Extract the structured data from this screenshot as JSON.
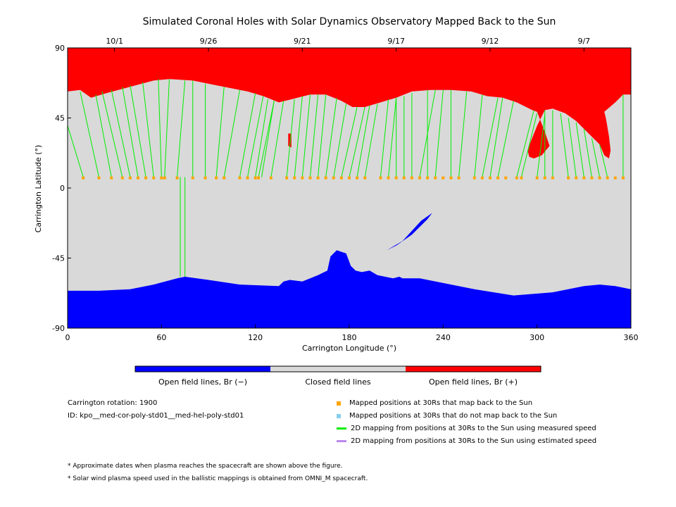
{
  "chart_data": {
    "type": "map",
    "title": "Simulated Coronal Holes with Solar Dynamics Observatory Mapped Back to the Sun",
    "xlabel": "Carrington Longitude (°)",
    "ylabel": "Carrington Latitude (°)",
    "xlim": [
      0,
      360
    ],
    "ylim": [
      -90,
      90
    ],
    "x_ticks": [
      "0",
      "60",
      "120",
      "180",
      "240",
      "300",
      "360"
    ],
    "y_ticks": [
      "90",
      "45",
      "0",
      "-45",
      "-90"
    ],
    "top_dates": [
      {
        "label": "10/1",
        "lon": 30
      },
      {
        "label": "9/26",
        "lon": 90
      },
      {
        "label": "9/21",
        "lon": 150
      },
      {
        "label": "9/17",
        "lon": 210
      },
      {
        "label": "9/12",
        "lon": 270
      },
      {
        "label": "9/7",
        "lon": 330
      }
    ],
    "colors": {
      "open_negative": "#0000ff",
      "closed": "#d9d9d9",
      "open_positive": "#ff0000",
      "mapped": "#ffa500",
      "not_mapped": "#87ceeb",
      "measured": "#00ee00",
      "estimated": "#bb88ee"
    },
    "north_hole_boundary": [
      [
        0,
        90
      ],
      [
        0,
        62
      ],
      [
        8,
        63
      ],
      [
        15,
        58
      ],
      [
        25,
        61
      ],
      [
        40,
        65
      ],
      [
        55,
        69
      ],
      [
        65,
        70
      ],
      [
        80,
        69
      ],
      [
        95,
        66
      ],
      [
        105,
        64
      ],
      [
        115,
        62
      ],
      [
        125,
        59
      ],
      [
        135,
        55
      ],
      [
        143,
        57
      ],
      [
        155,
        60
      ],
      [
        165,
        60
      ],
      [
        175,
        56
      ],
      [
        182,
        52
      ],
      [
        190,
        52
      ],
      [
        200,
        55
      ],
      [
        210,
        58
      ],
      [
        220,
        62
      ],
      [
        232,
        63
      ],
      [
        245,
        63
      ],
      [
        258,
        62
      ],
      [
        268,
        59
      ],
      [
        278,
        58
      ],
      [
        287,
        55
      ],
      [
        297,
        50
      ],
      [
        300,
        49
      ],
      [
        305,
        36
      ],
      [
        308,
        27
      ],
      [
        303,
        21
      ],
      [
        298,
        19
      ],
      [
        295,
        20
      ],
      [
        294,
        24
      ],
      [
        296,
        30
      ],
      [
        300,
        40
      ],
      [
        305,
        50
      ],
      [
        310,
        51
      ],
      [
        318,
        48
      ],
      [
        325,
        43
      ],
      [
        330,
        38
      ],
      [
        335,
        33
      ],
      [
        340,
        28
      ],
      [
        343,
        21
      ],
      [
        346,
        19
      ],
      [
        347,
        24
      ],
      [
        346,
        33
      ],
      [
        344,
        45
      ],
      [
        343,
        49
      ],
      [
        350,
        55
      ],
      [
        355,
        60
      ],
      [
        360,
        60
      ],
      [
        360,
        90
      ]
    ],
    "north_small_spot": [
      [
        141,
        35
      ],
      [
        143,
        35
      ],
      [
        143,
        26
      ],
      [
        141,
        27
      ]
    ],
    "south_hole_boundary": [
      [
        0,
        -90
      ],
      [
        0,
        -66
      ],
      [
        20,
        -66
      ],
      [
        40,
        -65
      ],
      [
        55,
        -62
      ],
      [
        70,
        -58
      ],
      [
        75,
        -57
      ],
      [
        90,
        -59
      ],
      [
        110,
        -62
      ],
      [
        135,
        -63
      ],
      [
        138,
        -60
      ],
      [
        142,
        -59
      ],
      [
        150,
        -60
      ],
      [
        160,
        -56
      ],
      [
        166,
        -53
      ],
      [
        168,
        -44
      ],
      [
        172,
        -40
      ],
      [
        178,
        -42
      ],
      [
        181,
        -50
      ],
      [
        184,
        -53
      ],
      [
        188,
        -54
      ],
      [
        193,
        -53
      ],
      [
        198,
        -56
      ],
      [
        208,
        -58
      ],
      [
        212,
        -57
      ],
      [
        214,
        -58
      ],
      [
        225,
        -58
      ],
      [
        240,
        -61
      ],
      [
        260,
        -65
      ],
      [
        285,
        -69
      ],
      [
        310,
        -67
      ],
      [
        330,
        -63
      ],
      [
        340,
        -62
      ],
      [
        350,
        -63
      ],
      [
        360,
        -65
      ],
      [
        360,
        -90
      ]
    ],
    "south_sliver": [
      [
        204,
        -40
      ],
      [
        214,
        -34
      ],
      [
        226,
        -21
      ],
      [
        233,
        -16
      ],
      [
        230,
        -20
      ],
      [
        220,
        -30
      ],
      [
        210,
        -37
      ]
    ],
    "mapped_points_lon": [
      10,
      20,
      28,
      35,
      40,
      45,
      50,
      55,
      60,
      62,
      70,
      80,
      88,
      95,
      100,
      110,
      115,
      120,
      122,
      130,
      140,
      145,
      150,
      155,
      160,
      165,
      170,
      175,
      180,
      185,
      190,
      200,
      205,
      210,
      215,
      220,
      225,
      230,
      235,
      240,
      245,
      250,
      260,
      265,
      270,
      275,
      280,
      287,
      290,
      300,
      305,
      310,
      320,
      325,
      330,
      335,
      340,
      345,
      350,
      355
    ],
    "mapped_lat": 6.5,
    "measured_lines": [
      [
        10,
        7,
        0,
        40
      ],
      [
        20,
        7,
        8,
        62
      ],
      [
        28,
        7,
        18,
        60
      ],
      [
        35,
        7,
        22,
        62
      ],
      [
        40,
        7,
        28,
        63
      ],
      [
        45,
        7,
        35,
        65
      ],
      [
        50,
        7,
        40,
        66
      ],
      [
        55,
        7,
        48,
        68
      ],
      [
        60,
        7,
        58,
        70
      ],
      [
        62,
        7,
        65,
        70
      ],
      [
        70,
        7,
        75,
        69
      ],
      [
        72,
        7,
        72,
        -57
      ],
      [
        75,
        7,
        75,
        -57
      ],
      [
        80,
        7,
        80,
        69
      ],
      [
        88,
        7,
        88,
        67
      ],
      [
        95,
        7,
        100,
        65
      ],
      [
        100,
        7,
        110,
        63
      ],
      [
        110,
        7,
        120,
        61
      ],
      [
        115,
        7,
        125,
        59
      ],
      [
        120,
        7,
        128,
        57
      ],
      [
        122,
        7,
        132,
        56
      ],
      [
        124,
        7,
        132,
        56
      ],
      [
        130,
        7,
        138,
        56
      ],
      [
        140,
        7,
        145,
        57
      ],
      [
        145,
        7,
        150,
        59
      ],
      [
        150,
        7,
        155,
        60
      ],
      [
        155,
        7,
        160,
        60
      ],
      [
        160,
        7,
        165,
        60
      ],
      [
        165,
        7,
        172,
        58
      ],
      [
        170,
        7,
        178,
        54
      ],
      [
        175,
        7,
        185,
        52
      ],
      [
        180,
        7,
        190,
        52
      ],
      [
        185,
        7,
        193,
        53
      ],
      [
        190,
        7,
        198,
        54
      ],
      [
        200,
        7,
        205,
        57
      ],
      [
        205,
        7,
        210,
        58
      ],
      [
        210,
        7,
        210,
        58
      ],
      [
        215,
        7,
        215,
        59
      ],
      [
        220,
        7,
        220,
        61
      ],
      [
        225,
        7,
        235,
        63
      ],
      [
        230,
        7,
        230,
        63
      ],
      [
        235,
        7,
        240,
        63
      ],
      [
        245,
        7,
        245,
        63
      ],
      [
        250,
        7,
        255,
        62
      ],
      [
        260,
        7,
        265,
        60
      ],
      [
        265,
        7,
        275,
        58
      ],
      [
        270,
        7,
        278,
        58
      ],
      [
        275,
        7,
        285,
        56
      ],
      [
        287,
        7,
        298,
        50
      ],
      [
        290,
        7,
        300,
        48
      ],
      [
        300,
        7,
        305,
        47
      ],
      [
        305,
        7,
        305,
        50
      ],
      [
        310,
        7,
        310,
        50
      ],
      [
        320,
        7,
        315,
        48
      ],
      [
        325,
        7,
        320,
        45
      ],
      [
        330,
        7,
        325,
        42
      ],
      [
        335,
        7,
        330,
        38
      ],
      [
        340,
        7,
        335,
        32
      ],
      [
        345,
        7,
        340,
        28
      ],
      [
        355,
        7,
        355,
        60
      ]
    ],
    "legend_bar": [
      "Open field lines, Br (−)",
      "Closed field lines",
      "Open field lines, Br (+)"
    ],
    "legend_items": [
      "Mapped positions at 30Rs that map back to the Sun",
      "Mapped positions at 30Rs that do not map back to the Sun",
      "2D mapping from positions at 30Rs to the Sun using measured speed",
      "2D mapping from positions at 30Rs to the Sun using estimated speed"
    ],
    "carrington_rotation": "Carrington rotation: 1900",
    "model_id": "ID: kpo__med-cor-poly-std01__med-hel-poly-std01",
    "notes": [
      "* Approximate dates when plasma reaches the spacecraft are shown above the figure.",
      "* Solar wind plasma speed used in the ballistic mappings is obtained from OMNI_M spacecraft."
    ]
  }
}
